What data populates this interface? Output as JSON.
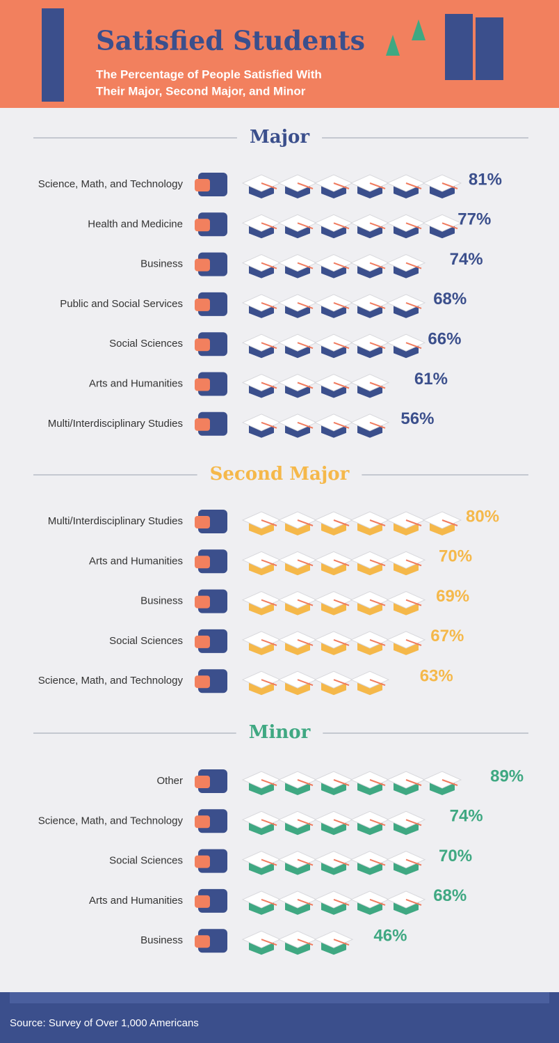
{
  "header": {
    "title": "Satisfied Students",
    "subtitle": [
      "The Percentage of People Satisfied With",
      "Their Major, Second Major, and Minor"
    ]
  },
  "chart_data": [
    {
      "type": "pictograph",
      "title": "Major",
      "color": "#3b4f8c",
      "categories": [
        "Science, Math, and Technology",
        "Health and Medicine",
        "Business",
        "Public and Social Services",
        "Social Sciences",
        "Arts and Humanities",
        "Multi/Interdisciplinary Studies"
      ],
      "values": [
        81,
        77,
        74,
        68,
        66,
        61,
        56
      ],
      "value_labels": [
        "81%",
        "77%",
        "74%",
        "68%",
        "66%",
        "61%",
        "56%"
      ]
    },
    {
      "type": "pictograph",
      "title": "Second Major",
      "color": "#f5b84a",
      "categories": [
        "Multi/Interdisciplinary Studies",
        "Arts and Humanities",
        "Business",
        "Social Sciences",
        "Science, Math, and Technology"
      ],
      "values": [
        80,
        70,
        69,
        67,
        63
      ],
      "value_labels": [
        "80%",
        "70%",
        "69%",
        "67%",
        "63%"
      ]
    },
    {
      "type": "pictograph",
      "title": "Minor",
      "color": "#3fa882",
      "categories": [
        "Other",
        "Science, Math, and Technology",
        "Social Sciences",
        "Arts and Humanities",
        "Business"
      ],
      "values": [
        89,
        74,
        70,
        68,
        46
      ],
      "value_labels": [
        "89%",
        "74%",
        "70%",
        "68%",
        "46%"
      ]
    }
  ],
  "footer": {
    "source": "Source: Survey of Over 1,000 Americans"
  }
}
